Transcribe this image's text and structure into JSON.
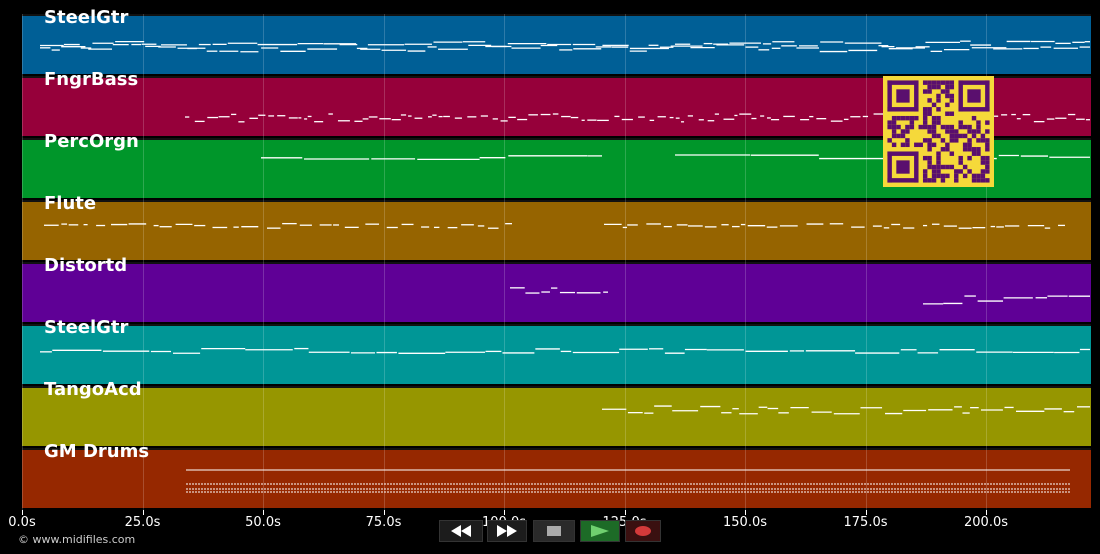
{
  "tracks": [
    {
      "name": "SteelGtr",
      "color": "#005f96"
    },
    {
      "name": "FngrBass",
      "color": "#96003a"
    },
    {
      "name": "PercOrgn",
      "color": "#00962a"
    },
    {
      "name": "Flute",
      "color": "#966400"
    },
    {
      "name": "Distortd",
      "color": "#5f0096"
    },
    {
      "name": "SteelGtr",
      "color": "#009696"
    },
    {
      "name": "TangoAcd",
      "color": "#969600"
    },
    {
      "name": "GM Drums",
      "color": "#962800"
    }
  ],
  "timeline": {
    "ticks": [
      "0.0s",
      "25.0s",
      "50.0s",
      "75.0s",
      "100.0s",
      "125.0s",
      "150.0s",
      "175.0s",
      "200.0s"
    ]
  },
  "copyright": "© www.midifiles.com",
  "transport": {
    "rewind_icon": "rewind-icon",
    "fast_forward_icon": "fast-forward-icon",
    "stop_icon": "stop-icon",
    "play_icon": "play-icon",
    "record_icon": "record-icon",
    "play_color": "#2e8b3a",
    "record_color": "#c0303a"
  },
  "qr_code": {
    "color": "#f5d93a",
    "module_color": "#5a0f6e"
  }
}
